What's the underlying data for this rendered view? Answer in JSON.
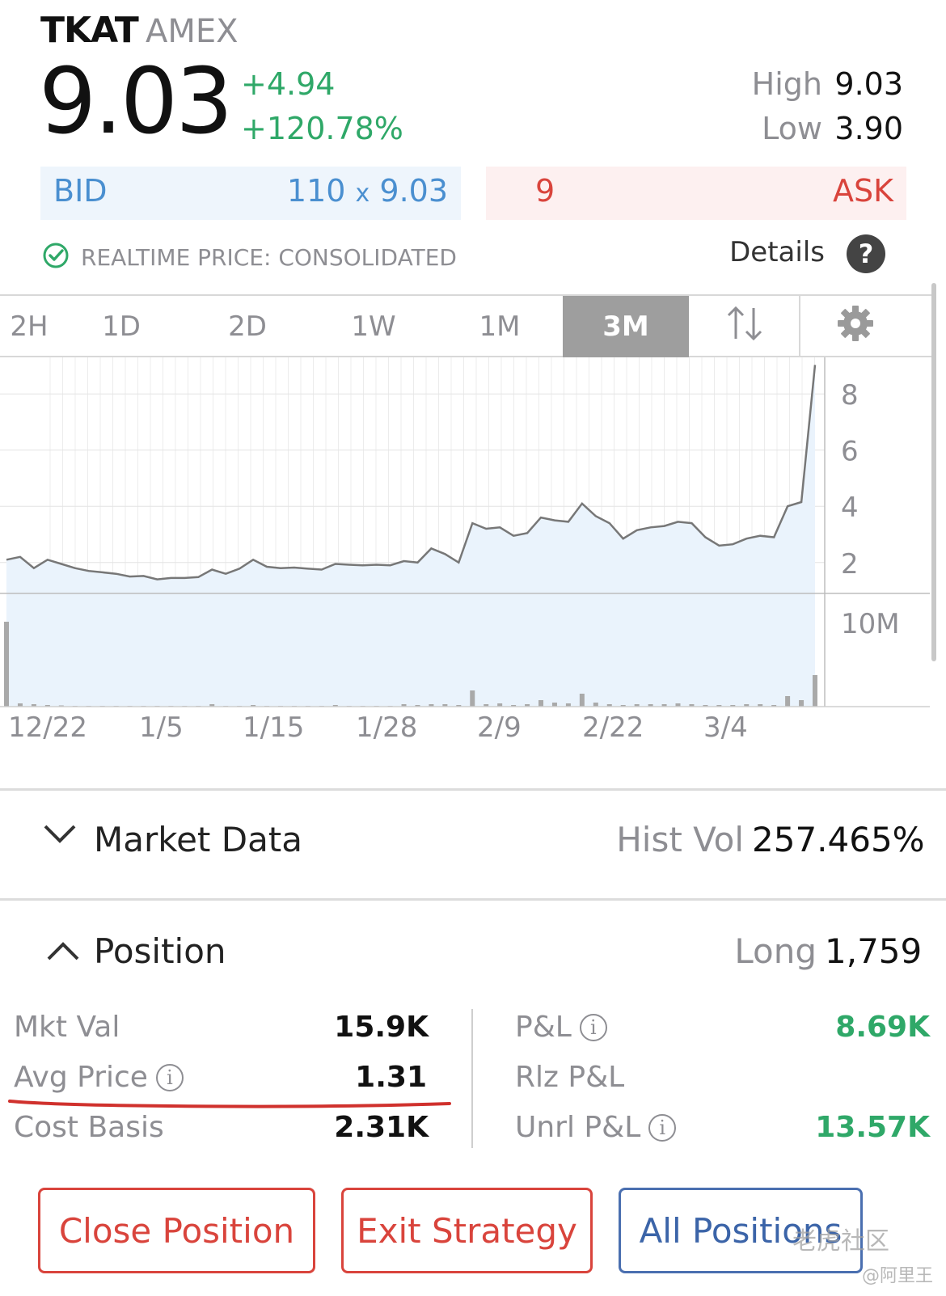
{
  "quote": {
    "ticker": "TKAT",
    "exchange": "AMEX",
    "price": "9.03",
    "change": "+4.94",
    "change_pct": "+120.78%",
    "high_label": "High",
    "high": "9.03",
    "low_label": "Low",
    "low": "3.90"
  },
  "book": {
    "bid_label": "BID",
    "bid_size": "110",
    "bid_x": "x",
    "bid_price": "9.03",
    "ask_size": "9",
    "ask_label": "ASK"
  },
  "realtime": {
    "text": "REALTIME PRICE: CONSOLIDATED",
    "details_label": "Details",
    "help_label": "?"
  },
  "ranges": {
    "tabs": [
      "2H",
      "1D",
      "2D",
      "1W",
      "1M",
      "3M"
    ],
    "active": "3M"
  },
  "colors": {
    "green": "#2fa868",
    "red": "#d9443c",
    "blue": "#4a8fd0",
    "chart_line": "#777777",
    "chart_fill": "#eaf3fc"
  },
  "chart_data": {
    "type": "line",
    "y_ticks": [
      "8",
      "6",
      "4",
      "2"
    ],
    "ylim": [
      0.9,
      9.3
    ],
    "volume_tick": "10M",
    "volume_max": 14,
    "x_labels": [
      "12/22",
      "1/5",
      "1/15",
      "1/28",
      "2/9",
      "2/22",
      "3/4"
    ],
    "grid": true,
    "price": [
      2.1,
      2.2,
      1.8,
      2.1,
      1.95,
      1.8,
      1.7,
      1.65,
      1.6,
      1.5,
      1.52,
      1.4,
      1.45,
      1.45,
      1.48,
      1.75,
      1.6,
      1.78,
      2.1,
      1.85,
      1.8,
      1.82,
      1.78,
      1.75,
      1.95,
      1.92,
      1.9,
      1.92,
      1.9,
      2.05,
      2.0,
      2.5,
      2.3,
      2.0,
      3.4,
      3.2,
      3.25,
      2.95,
      3.05,
      3.6,
      3.5,
      3.45,
      4.1,
      3.65,
      3.4,
      2.85,
      3.15,
      3.25,
      3.3,
      3.45,
      3.4,
      2.9,
      2.6,
      2.65,
      2.85,
      2.95,
      2.9,
      4.0,
      4.15,
      9.03
    ],
    "volume": [
      10.5,
      0.4,
      0.3,
      0.2,
      0.15,
      0.1,
      0.1,
      0.1,
      0.1,
      0.1,
      0.1,
      0.1,
      0.1,
      0.1,
      0.1,
      0.3,
      0.1,
      0.1,
      0.2,
      0.1,
      0.1,
      0.1,
      0.1,
      0.1,
      0.2,
      0.1,
      0.1,
      0.1,
      0.1,
      0.3,
      0.2,
      0.3,
      0.3,
      0.2,
      2.0,
      0.3,
      0.4,
      0.2,
      0.3,
      0.8,
      0.5,
      0.4,
      1.6,
      0.5,
      0.3,
      0.2,
      0.3,
      0.3,
      0.3,
      0.4,
      0.3,
      0.2,
      0.2,
      0.2,
      0.3,
      0.3,
      0.2,
      1.3,
      0.8,
      3.9
    ]
  },
  "market_data": {
    "title": "Market Data",
    "hist_vol_label": "Hist Vol",
    "hist_vol": "257.465%"
  },
  "position": {
    "title": "Position",
    "side_label": "Long",
    "qty": "1,759",
    "mkt_val_label": "Mkt Val",
    "mkt_val": "15.9K",
    "avg_price_label": "Avg Price",
    "avg_price": "1.31",
    "cost_basis_label": "Cost Basis",
    "cost_basis": "2.31K",
    "pnl_label": "P&L",
    "pnl": "8.69K",
    "rlz_pnl_label": "Rlz P&L",
    "unrl_pnl_label": "Unrl P&L",
    "unrl_pnl": "13.57K",
    "info_glyph": "i"
  },
  "actions": {
    "close_position": "Close Position",
    "exit_strategy": "Exit Strategy",
    "all_positions": "All Positions"
  },
  "watermark": {
    "text": "老虎社区",
    "sub": "@阿里王"
  }
}
